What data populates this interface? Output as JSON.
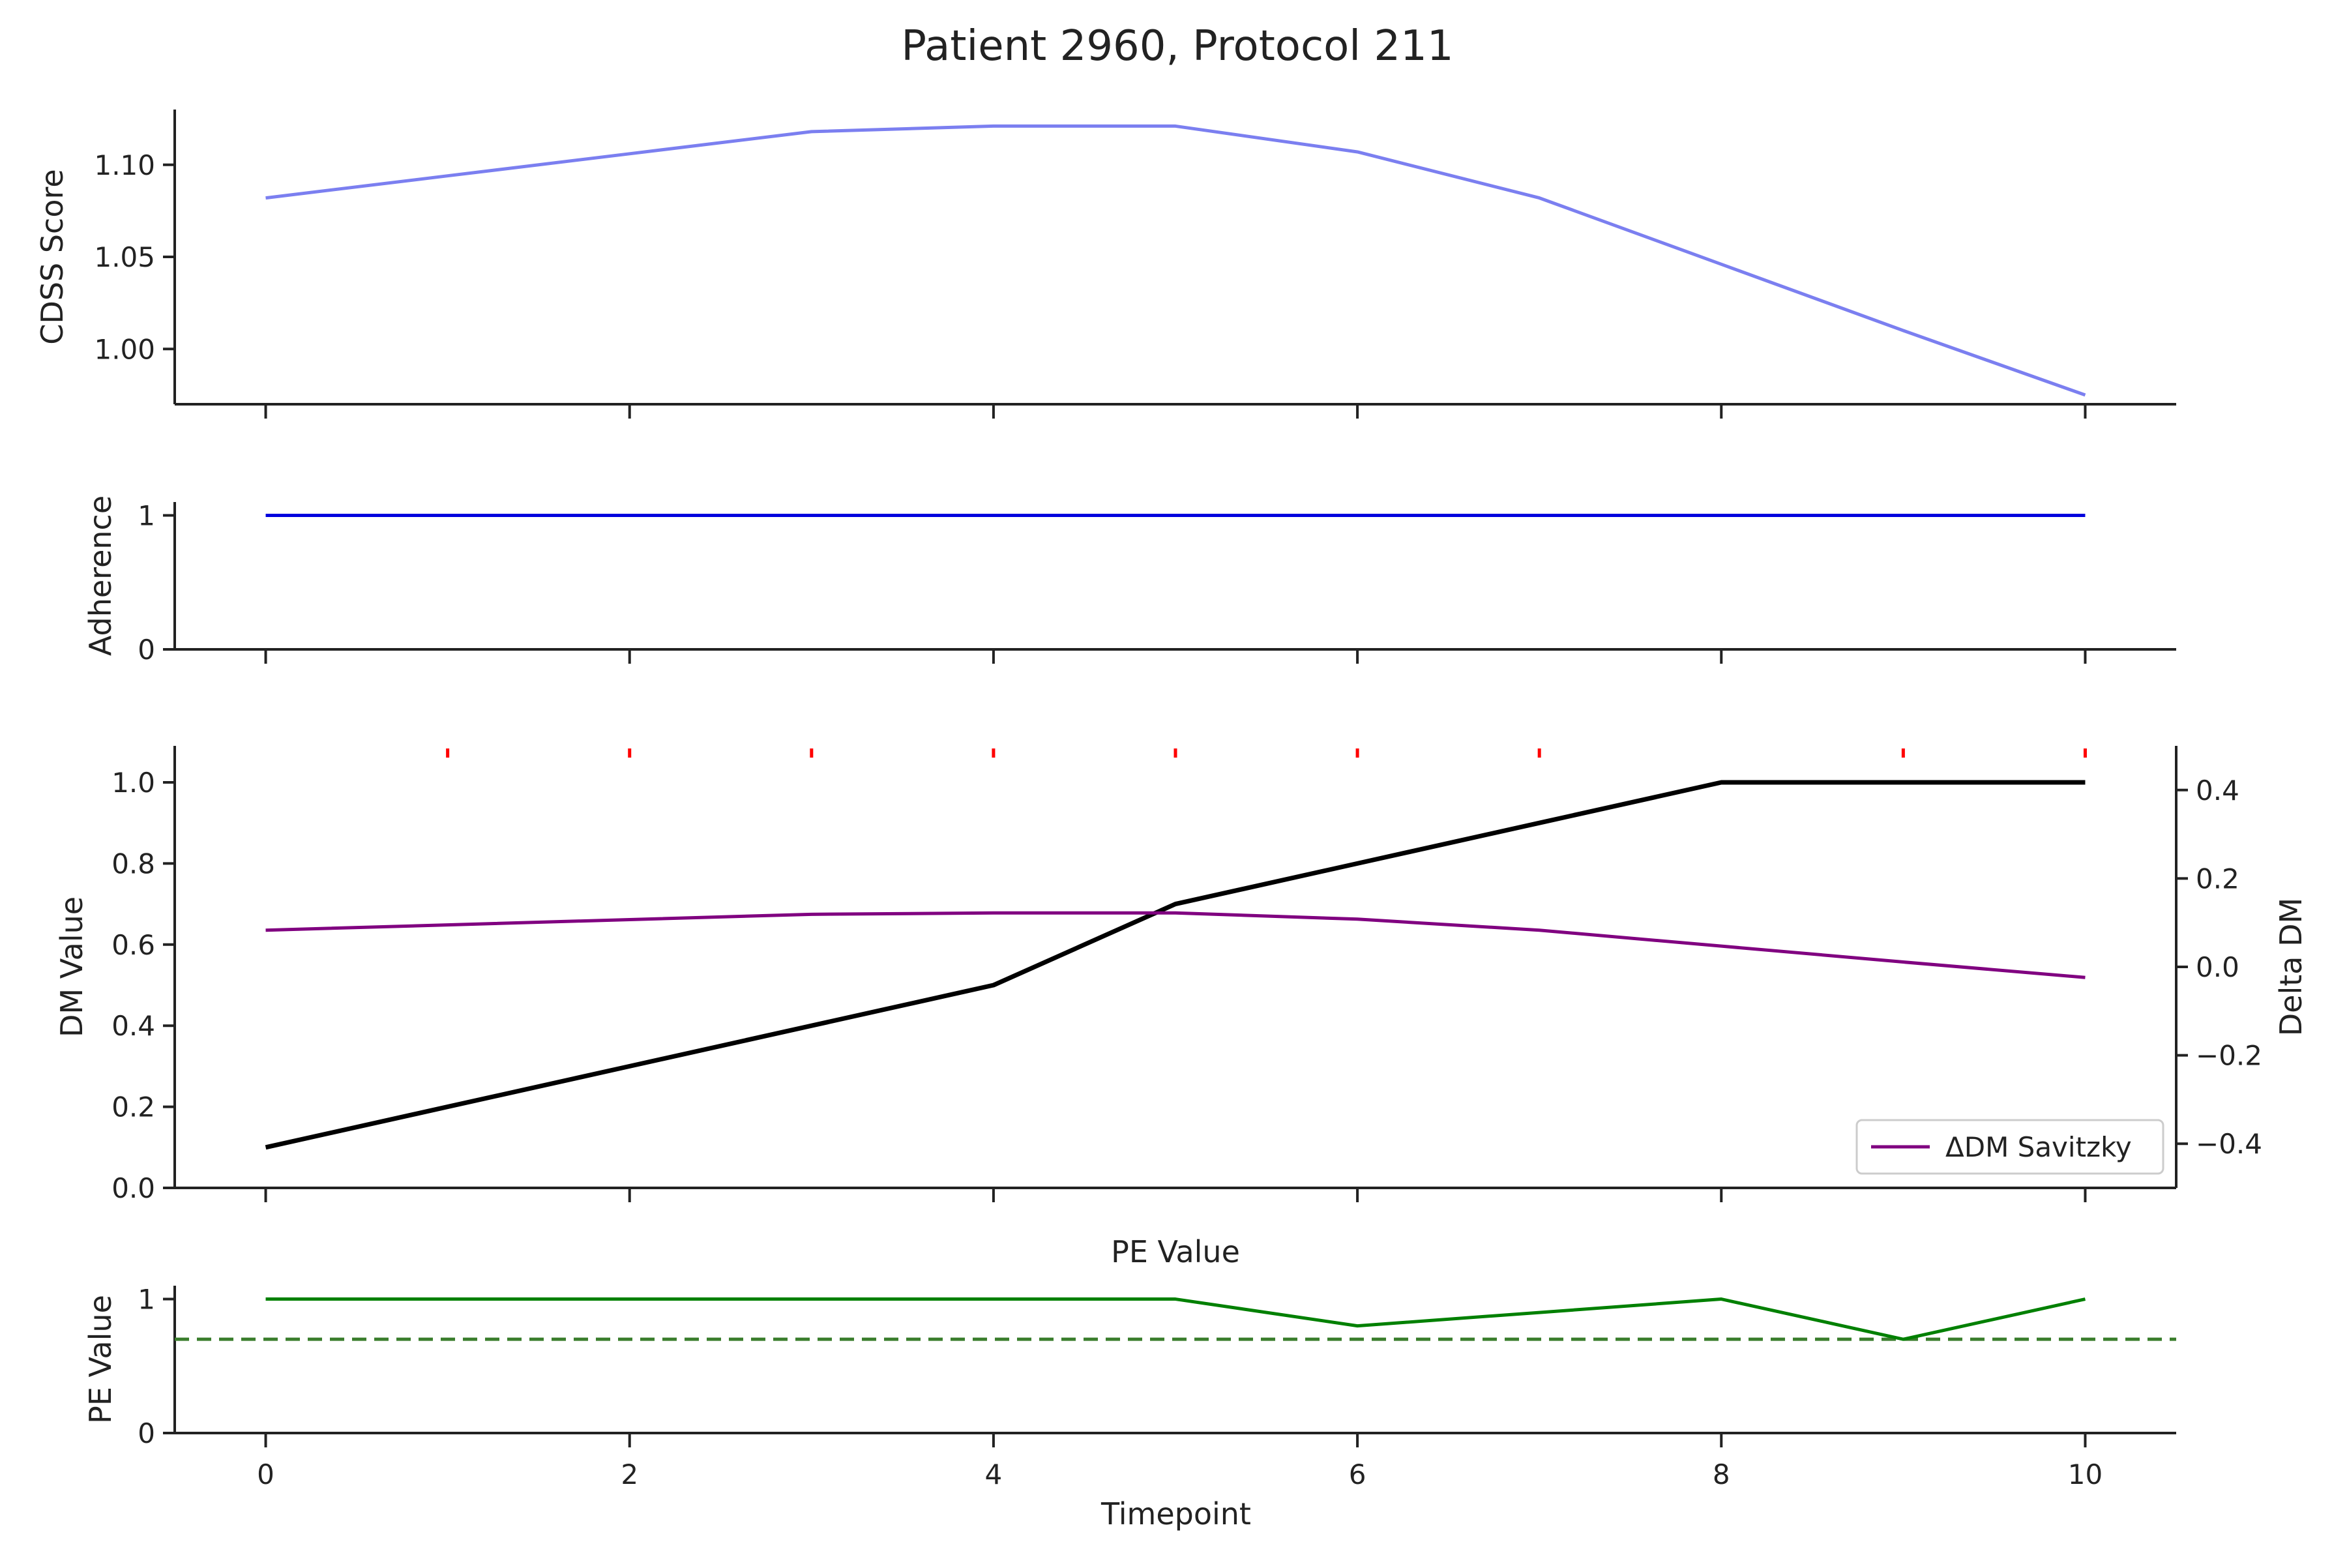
{
  "chart_data": {
    "title": "Patient 2960, Protocol 211",
    "xlabel": "Timepoint",
    "x": [
      0,
      1,
      2,
      3,
      4,
      5,
      6,
      7,
      8,
      9,
      10
    ],
    "x_ticks": [
      0,
      2,
      4,
      6,
      8,
      10
    ],
    "xlim": [
      -0.5,
      10.5
    ],
    "colors": {
      "cdss": "#7b7ff0",
      "adherence": "#0000dd",
      "dm": "#000000",
      "delta": "#800080",
      "pe": "#008000",
      "pe_threshold": "#3a7d2c",
      "markers": "#ff0000"
    },
    "panels": [
      {
        "id": "cdss",
        "type": "line",
        "ylabel": "CDSS Score",
        "ylim": [
          0.97,
          1.13
        ],
        "yticks": [
          1.0,
          1.05,
          1.1
        ],
        "ytick_labels": [
          "1.00",
          "1.05",
          "1.10"
        ],
        "series": [
          {
            "values": [
              1.082,
              1.094,
              1.106,
              1.118,
              1.121,
              1.121,
              1.107,
              1.082,
              1.046,
              1.01,
              0.975
            ]
          }
        ]
      },
      {
        "id": "adherence",
        "type": "line",
        "ylabel": "Adherence",
        "ylim": [
          0,
          1.1
        ],
        "yticks": [
          0,
          1
        ],
        "ytick_labels": [
          "0",
          "1"
        ],
        "series": [
          {
            "values": [
              1,
              1,
              1,
              1,
              1,
              1,
              1,
              1,
              1,
              1,
              1
            ]
          }
        ]
      },
      {
        "id": "dm",
        "type": "line",
        "ylabel": "DM Value",
        "ylim": [
          0,
          1.09
        ],
        "yticks": [
          0,
          0.2,
          0.4,
          0.6,
          0.8,
          1.0
        ],
        "ytick_labels": [
          "0.0",
          "0.2",
          "0.4",
          "0.6",
          "0.8",
          "1.0"
        ],
        "series": [
          {
            "values": [
              0.1,
              0.2,
              0.3,
              0.4,
              0.5,
              0.7,
              0.8,
              0.9,
              1.0,
              1.0,
              1.0
            ]
          }
        ],
        "marker_x": [
          1,
          2,
          3,
          4,
          5,
          6,
          7,
          9,
          10
        ],
        "secondary": {
          "ylabel": "Delta DM",
          "ylim": [
            -0.5,
            0.5
          ],
          "yticks": [
            -0.4,
            -0.2,
            0.0,
            0.2,
            0.4
          ],
          "ytick_labels": [
            "−0.4",
            "−0.2",
            "0.0",
            "0.2",
            "0.4"
          ],
          "series": [
            {
              "name": "ΔDM Savitzky",
              "values": [
                0.083,
                0.095,
                0.107,
                0.119,
                0.122,
                0.122,
                0.108,
                0.083,
                0.047,
                0.011,
                -0.024
              ]
            }
          ]
        },
        "legend": {
          "label": "ΔDM Savitzky",
          "position": "lower-right"
        }
      },
      {
        "id": "pe",
        "type": "line",
        "title": "PE Value",
        "ylabel": "PE Value",
        "ylim": [
          0,
          1.1
        ],
        "yticks": [
          0,
          1
        ],
        "ytick_labels": [
          "0",
          "1"
        ],
        "series": [
          {
            "values": [
              1,
              1,
              1,
              1,
              1,
              1,
              0.8,
              0.9,
              1.0,
              0.7,
              1.0
            ]
          }
        ],
        "threshold": 0.7
      }
    ]
  }
}
